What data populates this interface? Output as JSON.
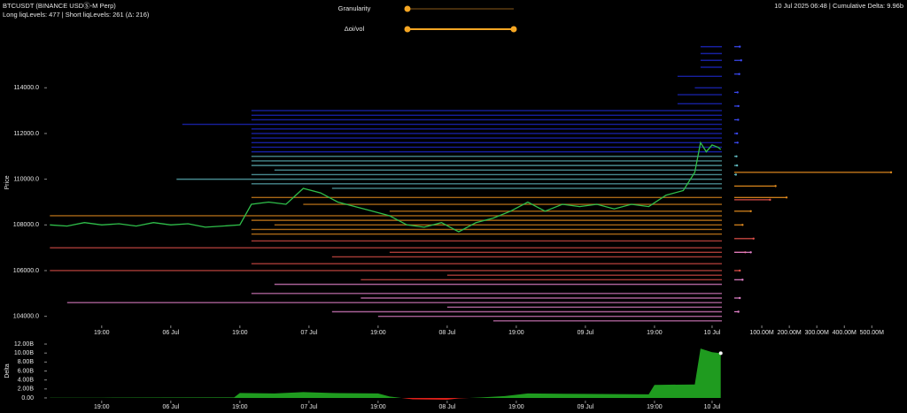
{
  "header": {
    "title": "BTCUSDT (BINANCE USDⓈ-M Perp)",
    "subtitle": "Long liqLevels: 477 | Short liqLevels: 261 (Δ: 216)",
    "status": "10 Jul 2025 06:48 | Cumulative Delta: 9.96b"
  },
  "controls": {
    "granularity": "Granularity",
    "delta_oi_vol": "Δoi/vol"
  },
  "chart_data": [
    {
      "type": "line",
      "y_label": "Price",
      "xlim": [
        -9.2,
        107.7
      ],
      "ylim": [
        103600,
        116100
      ],
      "xticks": [
        {
          "value": 0,
          "label": "19:00"
        },
        {
          "value": 12,
          "label": "06 Jul"
        },
        {
          "value": 24,
          "label": "19:00"
        },
        {
          "value": 36,
          "label": "07 Jul"
        },
        {
          "value": 48,
          "label": "19:00"
        },
        {
          "value": 60,
          "label": "08 Jul"
        },
        {
          "value": 72,
          "label": "19:00"
        },
        {
          "value": 84,
          "label": "09 Jul"
        },
        {
          "value": 96,
          "label": "19:00"
        },
        {
          "value": 106,
          "label": "10 Jul"
        }
      ],
      "yticks": [
        {
          "value": 104000,
          "label": "104000.0"
        },
        {
          "value": 106000,
          "label": "106000.0"
        },
        {
          "value": 108000,
          "label": "108000.0"
        },
        {
          "value": 110000,
          "label": "110000.0"
        },
        {
          "value": 112000,
          "label": "112000.0"
        },
        {
          "value": 114000,
          "label": "114000.0"
        }
      ],
      "series": [
        {
          "color": "#2fbf4a",
          "x": [
            -9,
            -6,
            -3,
            0,
            3,
            6,
            9,
            12,
            15,
            18,
            21,
            24,
            26,
            29,
            32,
            35,
            38,
            41,
            44,
            47,
            50,
            53,
            56,
            59,
            62,
            65,
            68,
            71,
            74,
            77,
            80,
            83,
            86,
            89,
            92,
            95,
            98,
            101,
            103,
            104,
            105,
            106,
            107,
            107.5
          ],
          "values": [
            108000,
            107950,
            108100,
            108000,
            108050,
            107950,
            108100,
            108000,
            108050,
            107900,
            107950,
            108000,
            108900,
            109000,
            108900,
            109600,
            109400,
            109000,
            108800,
            108600,
            108400,
            108000,
            107900,
            108100,
            107700,
            108100,
            108300,
            108600,
            109000,
            108600,
            108900,
            108800,
            108900,
            108700,
            108900,
            108800,
            109300,
            109500,
            110300,
            111600,
            111200,
            111500,
            111400,
            111300
          ]
        }
      ],
      "levels": [
        {
          "color": "#1f2bd6",
          "prices": [
            115800,
            115500,
            115200,
            114900,
            114500,
            114000,
            113700,
            113300,
            113000,
            112800,
            112600,
            112400,
            112200,
            112000,
            111800,
            111600,
            111400,
            111200
          ],
          "starts": [
            104,
            104,
            104,
            104,
            100,
            103,
            100,
            100,
            26,
            26,
            26,
            14,
            26,
            26,
            26,
            26,
            26,
            26
          ]
        },
        {
          "color": "#5fb7bd",
          "prices": [
            111000,
            110800,
            110600,
            110400,
            110200,
            110000,
            109800,
            109600
          ],
          "starts": [
            26,
            26,
            26,
            30,
            26,
            13,
            26,
            40
          ]
        },
        {
          "color": "#e08a1e",
          "prices": [
            109200,
            108900,
            108600,
            108400,
            108200,
            108000,
            107800,
            107600
          ],
          "starts": [
            26,
            35,
            50,
            -9,
            26,
            30,
            26,
            26
          ]
        },
        {
          "color": "#e0504a",
          "prices": [
            107300,
            107000,
            106800,
            106600,
            106300,
            106000,
            105800,
            105600
          ],
          "starts": [
            26,
            -9,
            50,
            40,
            26,
            -9,
            60,
            45
          ]
        },
        {
          "color": "#e080c8",
          "prices": [
            105400,
            105000,
            104800,
            104600,
            104400,
            104200,
            104000,
            103800
          ],
          "starts": [
            30,
            26,
            45,
            -6,
            60,
            40,
            48,
            68
          ]
        }
      ]
    },
    {
      "type": "barh",
      "xlim": [
        0,
        615
      ],
      "ylim": [
        103600,
        116100
      ],
      "xticks": [
        {
          "value": 100,
          "label": "100.00M"
        },
        {
          "value": 200,
          "label": "200.00M"
        },
        {
          "value": 300,
          "label": "300.00M"
        },
        {
          "value": 400,
          "label": "400.00M"
        },
        {
          "value": 500,
          "label": "500.00M"
        }
      ],
      "series": [
        {
          "color": "#3a48f0",
          "prices": [
            115800,
            115200,
            114600,
            113800,
            113200,
            112600,
            112000,
            111600
          ],
          "values": [
            20,
            25,
            18,
            12,
            15,
            14,
            10,
            12
          ]
        },
        {
          "color": "#5fb7bd",
          "prices": [
            111000,
            110600,
            110200
          ],
          "values": [
            8,
            10,
            6
          ]
        },
        {
          "color": "#e08a1e",
          "prices": [
            110300,
            109700,
            109200,
            108600,
            108000
          ],
          "values": [
            570,
            150,
            190,
            60,
            30
          ]
        },
        {
          "color": "#e0504a",
          "prices": [
            109100,
            107400,
            106800,
            106000
          ],
          "values": [
            130,
            70,
            40,
            20
          ]
        },
        {
          "color": "#e080c8",
          "prices": [
            106800,
            105600,
            104800,
            104200
          ],
          "values": [
            60,
            30,
            20,
            15
          ]
        }
      ]
    },
    {
      "type": "area",
      "y_label": "Delta",
      "xlim": [
        -9.2,
        107.7
      ],
      "ylim": [
        -0.6,
        12.6
      ],
      "xticks": [
        {
          "value": 0,
          "label": "19:00"
        },
        {
          "value": 12,
          "label": "06 Jul"
        },
        {
          "value": 24,
          "label": "19:00"
        },
        {
          "value": 36,
          "label": "07 Jul"
        },
        {
          "value": 48,
          "label": "19:00"
        },
        {
          "value": 60,
          "label": "08 Jul"
        },
        {
          "value": 72,
          "label": "19:00"
        },
        {
          "value": 84,
          "label": "09 Jul"
        },
        {
          "value": 96,
          "label": "19:00"
        },
        {
          "value": 106,
          "label": "10 Jul"
        }
      ],
      "yticks": [
        {
          "value": 0,
          "label": "0.00"
        },
        {
          "value": 2,
          "label": "2.00B"
        },
        {
          "value": 4,
          "label": "4.00B"
        },
        {
          "value": 6,
          "label": "6.00B"
        },
        {
          "value": 8,
          "label": "8.00B"
        },
        {
          "value": 10,
          "label": "10.00B"
        },
        {
          "value": 12,
          "label": "12.00B"
        }
      ],
      "color": "#1f9b1f",
      "negative_color": "#e0201a",
      "x": [
        -9,
        0,
        12,
        23,
        24,
        30,
        35,
        40,
        48,
        50,
        54,
        60,
        62,
        66,
        70,
        74,
        84,
        95,
        96,
        103,
        104,
        106,
        107.5
      ],
      "values": [
        0.05,
        0.05,
        0.08,
        0.1,
        1.1,
        1.0,
        1.3,
        1.1,
        1.0,
        0.3,
        -0.3,
        -0.4,
        -0.1,
        0.1,
        0.4,
        1.0,
        0.9,
        0.8,
        2.9,
        3.0,
        11.0,
        10.2,
        9.96
      ]
    }
  ]
}
